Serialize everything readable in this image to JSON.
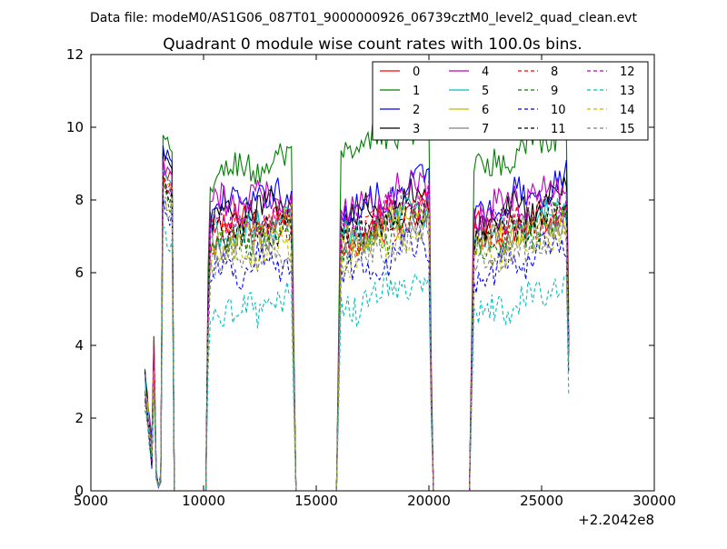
{
  "header": {
    "file_text": "Data file: modeM0/AS1G06_087T01_9000000926_06739cztM0_level2_quad_clean.evt"
  },
  "chart_data": {
    "type": "line",
    "title": "Quadrant 0 module wise count rates with 100.0s bins.",
    "xlabel": "",
    "ylabel": "",
    "x_offset_label": "+2.2042e8",
    "xlim": [
      5000,
      30000
    ],
    "ylim": [
      0,
      12
    ],
    "xticks": [
      5000,
      10000,
      15000,
      20000,
      25000,
      30000
    ],
    "yticks": [
      0,
      2,
      4,
      6,
      8,
      10,
      12
    ],
    "grid": false,
    "legend_placement": "top-right",
    "legend_columns": 4,
    "segments": [
      {
        "start": 7400,
        "end": 8700
      },
      {
        "start": 10200,
        "end": 14000
      },
      {
        "start": 16000,
        "end": 20100
      },
      {
        "start": 21900,
        "end": 26200
      }
    ],
    "series": [
      {
        "name": "0",
        "color": "#ff0000",
        "dash": "solid",
        "levels": [
          3.0,
          9.0,
          7.3,
          6.9,
          7.2,
          7.1
        ]
      },
      {
        "name": "1",
        "color": "#008000",
        "dash": "solid",
        "levels": [
          3.2,
          9.6,
          8.7,
          9.2,
          8.8,
          9.4
        ]
      },
      {
        "name": "2",
        "color": "#0000ff",
        "dash": "solid",
        "levels": [
          3.1,
          9.3,
          7.8,
          7.6,
          7.6,
          8.0
        ]
      },
      {
        "name": "3",
        "color": "#000000",
        "dash": "solid",
        "levels": [
          3.0,
          9.1,
          7.5,
          7.3,
          7.3,
          7.6
        ]
      },
      {
        "name": "4",
        "color": "#bf00bf",
        "dash": "solid",
        "levels": [
          2.9,
          8.9,
          7.8,
          7.6,
          7.7,
          7.8
        ]
      },
      {
        "name": "5",
        "color": "#00bfbf",
        "dash": "solid",
        "levels": [
          2.8,
          8.6,
          7.0,
          6.9,
          6.9,
          7.2
        ]
      },
      {
        "name": "6",
        "color": "#bfbf00",
        "dash": "solid",
        "levels": [
          2.8,
          8.5,
          6.9,
          6.7,
          6.8,
          7.0
        ]
      },
      {
        "name": "7",
        "color": "#808080",
        "dash": "solid",
        "levels": [
          2.7,
          8.3,
          6.8,
          6.6,
          6.7,
          6.9
        ]
      },
      {
        "name": "8",
        "color": "#ff0000",
        "dash": "dashed",
        "levels": [
          2.8,
          8.4,
          6.9,
          6.7,
          6.9,
          7.0
        ]
      },
      {
        "name": "9",
        "color": "#008000",
        "dash": "dashed",
        "levels": [
          2.7,
          8.2,
          6.7,
          6.6,
          6.6,
          6.9
        ]
      },
      {
        "name": "10",
        "color": "#0000ff",
        "dash": "dashed",
        "levels": [
          2.5,
          7.8,
          6.0,
          5.9,
          5.9,
          6.2
        ]
      },
      {
        "name": "11",
        "color": "#000000",
        "dash": "dashed",
        "levels": [
          2.8,
          8.4,
          7.0,
          6.9,
          7.0,
          7.1
        ]
      },
      {
        "name": "12",
        "color": "#bf00bf",
        "dash": "dashed",
        "levels": [
          2.8,
          8.6,
          7.3,
          7.2,
          7.2,
          7.4
        ]
      },
      {
        "name": "13",
        "color": "#00bfbf",
        "dash": "dashed",
        "levels": [
          2.2,
          7.0,
          4.8,
          4.9,
          4.8,
          5.2
        ]
      },
      {
        "name": "14",
        "color": "#bfbf00",
        "dash": "dashed",
        "levels": [
          2.7,
          8.1,
          6.4,
          6.3,
          6.4,
          6.6
        ]
      },
      {
        "name": "15",
        "color": "#808080",
        "dash": "dashed",
        "levels": [
          2.6,
          7.9,
          6.2,
          6.2,
          6.2,
          6.4
        ]
      }
    ]
  }
}
